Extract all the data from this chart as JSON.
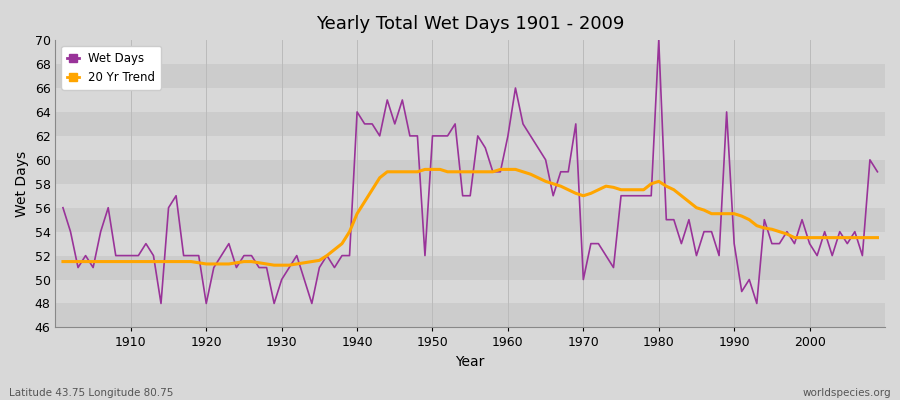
{
  "title": "Yearly Total Wet Days 1901 - 2009",
  "xlabel": "Year",
  "ylabel": "Wet Days",
  "footnote_left": "Latitude 43.75 Longitude 80.75",
  "footnote_right": "worldspecies.org",
  "legend": [
    "Wet Days",
    "20 Yr Trend"
  ],
  "wet_days_color": "#993399",
  "trend_color": "#FFA500",
  "bg_color": "#DCDCDC",
  "plot_bg_color": "#DCDCDC",
  "ylim": [
    46,
    70
  ],
  "yticks": [
    46,
    48,
    50,
    52,
    54,
    56,
    58,
    60,
    62,
    64,
    66,
    68,
    70
  ],
  "years": [
    1901,
    1902,
    1903,
    1904,
    1905,
    1906,
    1907,
    1908,
    1909,
    1910,
    1911,
    1912,
    1913,
    1914,
    1915,
    1916,
    1917,
    1918,
    1919,
    1920,
    1921,
    1922,
    1923,
    1924,
    1925,
    1926,
    1927,
    1928,
    1929,
    1930,
    1931,
    1932,
    1933,
    1934,
    1935,
    1936,
    1937,
    1938,
    1939,
    1940,
    1941,
    1942,
    1943,
    1944,
    1945,
    1946,
    1947,
    1948,
    1949,
    1950,
    1951,
    1952,
    1953,
    1954,
    1955,
    1956,
    1957,
    1958,
    1959,
    1960,
    1961,
    1962,
    1963,
    1964,
    1965,
    1966,
    1967,
    1968,
    1969,
    1970,
    1971,
    1972,
    1973,
    1974,
    1975,
    1976,
    1977,
    1978,
    1979,
    1980,
    1981,
    1982,
    1983,
    1984,
    1985,
    1986,
    1987,
    1988,
    1989,
    1990,
    1991,
    1992,
    1993,
    1994,
    1995,
    1996,
    1997,
    1998,
    1999,
    2000,
    2001,
    2002,
    2003,
    2004,
    2005,
    2006,
    2007,
    2008,
    2009
  ],
  "wet_days": [
    56,
    54,
    51,
    52,
    51,
    54,
    56,
    52,
    52,
    52,
    52,
    53,
    52,
    48,
    56,
    57,
    52,
    52,
    52,
    48,
    51,
    52,
    53,
    51,
    52,
    52,
    51,
    51,
    48,
    50,
    51,
    52,
    50,
    48,
    51,
    52,
    51,
    52,
    52,
    64,
    63,
    63,
    62,
    65,
    63,
    65,
    62,
    62,
    52,
    62,
    62,
    62,
    63,
    57,
    57,
    62,
    61,
    59,
    59,
    62,
    66,
    63,
    62,
    61,
    60,
    57,
    59,
    59,
    63,
    50,
    53,
    53,
    52,
    51,
    57,
    57,
    57,
    57,
    57,
    70,
    55,
    55,
    53,
    55,
    52,
    54,
    54,
    52,
    64,
    53,
    49,
    50,
    48,
    55,
    53,
    53,
    54,
    53,
    55,
    53,
    52,
    54,
    52,
    54,
    53,
    54,
    52,
    60,
    59
  ],
  "trend": [
    51.5,
    51.5,
    51.5,
    51.5,
    51.5,
    51.5,
    51.5,
    51.5,
    51.5,
    51.5,
    51.5,
    51.5,
    51.5,
    51.5,
    51.5,
    51.5,
    51.5,
    51.5,
    51.4,
    51.3,
    51.3,
    51.3,
    51.3,
    51.4,
    51.5,
    51.5,
    51.4,
    51.3,
    51.2,
    51.2,
    51.2,
    51.3,
    51.4,
    51.5,
    51.6,
    52.0,
    52.5,
    53.0,
    54.0,
    55.5,
    56.5,
    57.5,
    58.5,
    59.0,
    59.0,
    59.0,
    59.0,
    59.0,
    59.2,
    59.2,
    59.2,
    59.0,
    59.0,
    59.0,
    59.0,
    59.0,
    59.0,
    59.0,
    59.2,
    59.2,
    59.2,
    59.0,
    58.8,
    58.5,
    58.2,
    58.0,
    57.8,
    57.5,
    57.2,
    57.0,
    57.2,
    57.5,
    57.8,
    57.7,
    57.5,
    57.5,
    57.5,
    57.5,
    58.0,
    58.2,
    57.8,
    57.5,
    57.0,
    56.5,
    56.0,
    55.8,
    55.5,
    55.5,
    55.5,
    55.5,
    55.3,
    55.0,
    54.5,
    54.3,
    54.2,
    54.0,
    53.8,
    53.5,
    53.5,
    53.5,
    53.5,
    53.5,
    53.5,
    53.5,
    53.5,
    53.5,
    53.5,
    53.5,
    53.5
  ]
}
